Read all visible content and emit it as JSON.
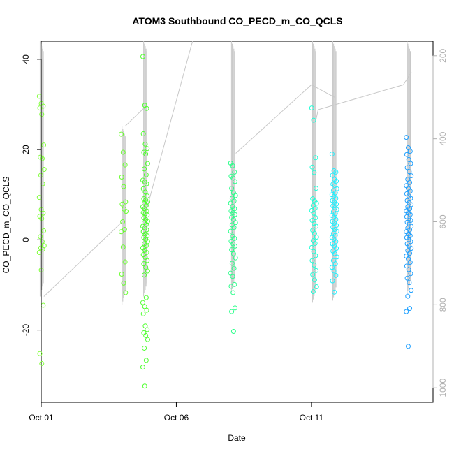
{
  "chart_data": {
    "type": "scatter",
    "title": "ATOM3 Southbound CO_PECD_m_CO_QCLS",
    "xlabel": "Date",
    "ylabel": "CO_PECD_m_CO_QCLS",
    "x_axis": {
      "min": 0.0,
      "max": 14.5,
      "ticks": [
        {
          "value": 0,
          "label": "Oct 01"
        },
        {
          "value": 5,
          "label": "Oct 06"
        },
        {
          "value": 10,
          "label": "Oct 11"
        }
      ]
    },
    "y_axis": {
      "min": -36,
      "max": 44,
      "ticks": [
        -20,
        0,
        20,
        40
      ]
    },
    "y2_axis": {
      "label": "",
      "reversed": true,
      "min": 1035,
      "max": 165,
      "ticks": [
        200,
        400,
        600,
        800,
        1000
      ],
      "color": "#b0b0b0"
    },
    "colors": {
      "point_start": "#7fff00",
      "point_end": "#1e90ff",
      "profile_line": "#c8c8c8"
    },
    "grid": false,
    "legend": "none",
    "clusters": [
      {
        "x": 0.02,
        "color": "#80ff3a",
        "profile": [
          165,
          780
        ],
        "values": [
          31.8,
          30.2,
          29.6,
          29.2,
          27.8,
          21.0,
          18.3,
          18.0,
          15.6,
          14.3,
          12.4,
          9.4,
          6.7,
          5.9,
          5.2,
          4.7,
          2.0,
          0.7,
          -0.4,
          -1.3,
          -1.8,
          -2.1,
          -2.8,
          -6.7,
          -14.5,
          -25.2,
          -27.4
        ]
      },
      {
        "x": 3.05,
        "color": "#6aff30",
        "profile": [
          370,
          800
        ],
        "values": [
          23.4,
          19.4,
          16.6,
          13.9,
          11.8,
          8.4,
          7.9,
          6.8,
          6.3,
          4.0,
          2.3,
          1.8,
          -1.6,
          -4.9,
          -7.6,
          -9.6,
          -11.7
        ]
      },
      {
        "x": 3.85,
        "color": "#50ff30",
        "profile": [
          165,
          780
        ],
        "values": [
          40.6,
          29.8,
          29.1,
          23.5,
          21.2,
          20.2,
          19.4,
          19.0,
          16.9,
          15.7,
          14.4,
          13.2,
          12.8,
          12.4,
          11.3,
          10.6,
          9.7,
          9.1,
          8.8,
          8.4,
          8.1,
          7.6,
          7.3,
          6.9,
          6.4,
          6.0,
          5.8,
          5.5,
          4.9,
          4.5,
          4.1,
          3.8,
          3.4,
          3.0,
          2.6,
          2.2,
          1.8,
          1.3,
          0.9,
          0.5,
          0.1,
          -0.4,
          -0.9,
          -1.3,
          -1.8,
          -2.3,
          -2.8,
          -3.3,
          -3.9,
          -4.6,
          -5.3,
          -6.1,
          -6.9,
          -7.8,
          -12.8,
          -13.9,
          -14.8,
          -15.6,
          -16.4,
          -19.1,
          -19.9,
          -20.6,
          -21.2,
          -22.1,
          -24.0,
          -26.7,
          -28.2,
          -32.4
        ]
      },
      {
        "x": 7.1,
        "color": "#2aff8a",
        "profile": [
          165,
          770
        ],
        "values": [
          17.0,
          16.4,
          15.0,
          14.1,
          13.7,
          12.9,
          11.4,
          10.4,
          9.8,
          9.2,
          8.6,
          8.1,
          7.4,
          6.9,
          6.4,
          6.0,
          5.6,
          5.0,
          4.5,
          3.8,
          3.3,
          2.7,
          1.9,
          0.8,
          0.3,
          -0.3,
          -0.9,
          -1.4,
          -2.2,
          -3.1,
          -4.0,
          -5.2,
          -6.3,
          -7.4,
          -8.1,
          -9.9,
          -10.3,
          -11.7,
          -15.1,
          -15.9,
          -20.3
        ]
      },
      {
        "x": 10.1,
        "color": "#20ffd8",
        "profile": [
          165,
          795
        ],
        "values": [
          29.2,
          26.5,
          18.2,
          16.1,
          14.9,
          11.4,
          9.1,
          8.6,
          8.1,
          7.6,
          7.0,
          6.5,
          5.9,
          4.9,
          4.3,
          3.6,
          3.0,
          2.1,
          1.4,
          0.6,
          -0.2,
          -0.8,
          -1.7,
          -2.6,
          -3.5,
          -4.6,
          -5.6,
          -6.8,
          -7.7,
          -8.9,
          -10.4,
          -11.5
        ]
      },
      {
        "x": 10.85,
        "color": "#20f0ff",
        "profile": [
          165,
          790
        ],
        "values": [
          19.0,
          15.3,
          15.0,
          14.3,
          13.4,
          13.0,
          12.3,
          12.0,
          11.3,
          10.9,
          10.4,
          10.0,
          9.6,
          9.2,
          8.7,
          8.3,
          7.9,
          7.5,
          7.1,
          6.7,
          6.2,
          5.8,
          5.4,
          5.0,
          4.5,
          4.1,
          3.7,
          3.2,
          2.8,
          2.3,
          1.9,
          1.4,
          1.0,
          0.5,
          0.1,
          -0.4,
          -0.9,
          -1.4,
          -1.9,
          -2.5,
          -3.1,
          -3.8,
          -4.6,
          -5.3,
          -6.1,
          -6.9,
          -7.9,
          -9.1,
          -11.6
        ]
      },
      {
        "x": 13.6,
        "color": "#1ea0ff",
        "profile": [
          165,
          775
        ],
        "values": [
          22.7,
          20.4,
          19.6,
          18.9,
          17.8,
          16.9,
          16.0,
          15.1,
          14.2,
          13.4,
          12.7,
          12.0,
          11.4,
          10.8,
          10.2,
          9.7,
          9.2,
          8.7,
          8.2,
          7.8,
          7.3,
          6.9,
          6.4,
          6.0,
          5.6,
          5.1,
          4.7,
          4.3,
          3.9,
          3.5,
          3.0,
          2.6,
          2.2,
          1.8,
          1.3,
          0.9,
          0.5,
          0.0,
          -0.4,
          -0.9,
          -1.4,
          -1.9,
          -2.4,
          -3.0,
          -3.6,
          -4.2,
          -5.0,
          -5.8,
          -6.6,
          -7.5,
          -8.5,
          -9.5,
          -11.2,
          -12.5,
          -15.2,
          -15.9,
          -23.6
        ]
      }
    ],
    "profile_links": [
      [
        [
          0.1,
          780
        ],
        [
          3.0,
          600
        ]
      ],
      [
        [
          3.1,
          370
        ],
        [
          3.9,
          320
        ]
      ],
      [
        [
          3.9,
          570
        ],
        [
          5.6,
          165
        ]
      ],
      [
        [
          7.2,
          435
        ],
        [
          10.0,
          270
        ],
        [
          10.85,
          300
        ]
      ],
      [
        [
          10.15,
          360
        ],
        [
          10.25,
          330
        ],
        [
          13.4,
          270
        ],
        [
          13.7,
          240
        ]
      ]
    ]
  }
}
